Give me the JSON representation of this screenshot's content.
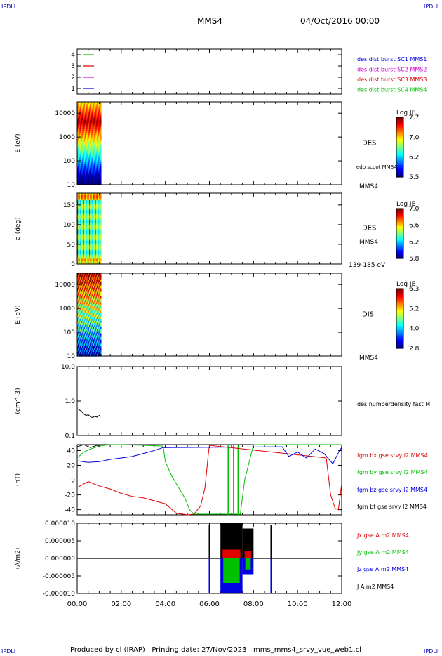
{
  "corner_labels": {
    "top_left": "IPDLI",
    "top_right": "IPDLI",
    "bottom_left": "IPDLI",
    "bottom_right": "IPDLI"
  },
  "header": {
    "spacecraft": "MMS4",
    "date": "04/Oct/2016 00:00"
  },
  "footer": {
    "text": "Produced by cl (IRAP)   Printing date: 27/Nov/2023   mms_mms4_srvy_vue_web1.cl"
  },
  "colors": {
    "black": "#000000",
    "red": "#e00000",
    "green": "#00c000",
    "blue": "#0000e0",
    "magenta": "#d000d0"
  },
  "chart_data": [
    {
      "type": "line",
      "id": "panel1",
      "ylim": [
        0.5,
        4.5
      ],
      "yticks": [
        1,
        2,
        3,
        4
      ],
      "markers": [
        {
          "y": 4,
          "color": "#00c000"
        },
        {
          "y": 3,
          "color": "#e00000"
        },
        {
          "y": 2,
          "color": "#d000d0"
        },
        {
          "y": 1,
          "color": "#0000e0"
        }
      ],
      "legend": [
        {
          "name": "des dist burst SC1 MMS1",
          "color": "#0000e0"
        },
        {
          "name": "des dist burst SC2 MMS2",
          "color": "#d000d0"
        },
        {
          "name": "des dist burst SC3 MMS3",
          "color": "#e00000"
        },
        {
          "name": "des dist burst SC4 MMS4",
          "color": "#00c000"
        }
      ]
    },
    {
      "type": "heatmap",
      "id": "panel2",
      "ylabel": "E (eV)",
      "yscale": "log",
      "ylim": [
        10,
        30000
      ],
      "yticks": [
        "10",
        "100",
        "1000",
        "10000"
      ],
      "data_time_range": [
        "00:00",
        "01:05"
      ],
      "label": "DES",
      "label2": "edp scpot MMS4",
      "label3": "MMS4",
      "colorbar": {
        "title": "Log JE",
        "range": [
          5.5,
          7.7
        ],
        "ticks": [
          "7.7",
          "7.0",
          "6.2",
          "5.5"
        ]
      }
    },
    {
      "type": "heatmap",
      "id": "panel3",
      "ylabel": "a (deg)",
      "ylim": [
        0,
        180
      ],
      "yticks": [
        "0",
        "50",
        "100",
        "150"
      ],
      "data_time_range": [
        "00:00",
        "01:05"
      ],
      "label": "DES",
      "label2": "MMS4",
      "label3": "139-185 eV",
      "colorbar": {
        "title": "Log JE",
        "range": [
          5.8,
          7.0
        ],
        "ticks": [
          "7.0",
          "6.6",
          "6.2",
          "5.8"
        ]
      }
    },
    {
      "type": "heatmap",
      "id": "panel4",
      "ylabel": "E (eV)",
      "yscale": "log",
      "ylim": [
        10,
        30000
      ],
      "yticks": [
        "10",
        "100",
        "1000",
        "10000"
      ],
      "data_time_range": [
        "00:00",
        "01:05"
      ],
      "label": "DIS",
      "label2": "MMS4",
      "colorbar": {
        "title": "Log JE",
        "range": [
          2.8,
          6.3
        ],
        "ticks": [
          "6.3",
          "5.2",
          "4.0",
          "2.8"
        ]
      }
    },
    {
      "type": "line",
      "id": "panel5",
      "ylabel": "(cm^-3)",
      "yscale": "log",
      "ylim": [
        0.1,
        10
      ],
      "yticks": [
        "0.1",
        "1.0",
        "10.0"
      ],
      "series": [
        {
          "name": "des numberdensity fast M",
          "color": "#000000",
          "x": [
            0.0,
            0.1,
            0.2,
            0.3,
            0.4,
            0.5,
            0.6,
            0.7,
            0.8,
            0.9,
            1.0,
            1.05
          ],
          "y": [
            0.6,
            0.55,
            0.5,
            0.42,
            0.38,
            0.4,
            0.35,
            0.33,
            0.36,
            0.34,
            0.38,
            0.35
          ]
        }
      ]
    },
    {
      "type": "line",
      "id": "panel6",
      "ylabel": "(nT)",
      "ylim": [
        -47,
        48
      ],
      "yticks": [
        "-40",
        "-20",
        "0",
        "20",
        "40"
      ],
      "series": [
        {
          "name": "fgm bx gse srvy l2 MMS4",
          "color": "#e00000",
          "x": [
            0,
            0.5,
            1.0,
            1.5,
            2.0,
            2.5,
            3.0,
            3.5,
            4.0,
            4.5,
            4.8,
            5.0,
            5.3,
            5.6,
            5.8,
            5.95,
            6.0,
            11.3,
            11.5,
            11.7,
            11.85,
            12.0
          ],
          "y": [
            -10,
            -2,
            -8,
            -12,
            -18,
            -22,
            -24,
            -28,
            -32,
            -45,
            -46,
            -47,
            -46,
            -35,
            -10,
            35,
            47,
            30,
            -20,
            -38,
            -40,
            -5
          ]
        },
        {
          "name": "fgm by gse srvy l2 MMS4",
          "color": "#00c000",
          "x": [
            0,
            0.3,
            0.6,
            1.0,
            1.5,
            2.0,
            3.0,
            3.9,
            4.0,
            4.3,
            4.6,
            4.9,
            5.1,
            5.3,
            7.4,
            7.6,
            8.0,
            12.0
          ],
          "y": [
            30,
            38,
            42,
            46,
            48,
            48,
            47,
            46,
            25,
            5,
            -10,
            -25,
            -40,
            -46,
            -46,
            0,
            48,
            48
          ]
        },
        {
          "name": "fgm bz gse srvy l2 MMS4",
          "color": "#0000e0",
          "x": [
            0,
            0.5,
            1.0,
            1.5,
            2.0,
            2.5,
            3.0,
            3.5,
            3.9,
            9.3,
            9.6,
            10.0,
            10.4,
            10.8,
            11.2,
            11.6,
            11.9,
            12.0
          ],
          "y": [
            26,
            24,
            25,
            28,
            30,
            32,
            36,
            40,
            44,
            45,
            32,
            38,
            30,
            42,
            36,
            22,
            40,
            44
          ]
        },
        {
          "name": "fgm bt gse srvy l2 MMS4",
          "color": "#000000",
          "x": [
            0,
            0.3,
            0.6,
            0.9,
            1.0
          ],
          "y": [
            45,
            48,
            44,
            47,
            46
          ]
        }
      ],
      "vlines": [
        {
          "x": 6.85,
          "color": "#00c000"
        },
        {
          "x": 7.1,
          "color": "#e00000"
        },
        {
          "x": 7.3,
          "color": "#00c000"
        }
      ],
      "hline_dashed": 0
    },
    {
      "type": "area",
      "id": "panel7",
      "ylabel": "(A/m2)",
      "ylim": [
        -1e-05,
        1e-05
      ],
      "yticks": [
        "-0.000010",
        "-0.000005",
        "0.000000",
        "0.000005",
        "0.000010"
      ],
      "series": [
        {
          "name": "Jx gse A m2 MMS4",
          "color": "#e00000"
        },
        {
          "name": "Jy gse A m2 MMS4",
          "color": "#00c000"
        },
        {
          "name": "Jz gse A m2 MMS4",
          "color": "#0000e0"
        },
        {
          "name": "J A m2 MMS4",
          "color": "#000000"
        }
      ],
      "spikes": [
        {
          "x": 6.0,
          "ymax": 9.5e-06,
          "ymin": -1e-05
        },
        {
          "x": 8.8,
          "ymax": 9.5e-06,
          "ymin": -1e-05
        }
      ],
      "bursts": [
        {
          "x0": 6.5,
          "x1": 7.5,
          "ymax": 1e-05,
          "ymin": -1e-05
        },
        {
          "x0": 7.5,
          "x1": 8.0,
          "ymax": 8.5e-06,
          "ymin": -4.5e-06
        }
      ]
    }
  ],
  "xaxis": {
    "ticks": [
      "00:00",
      "02:00",
      "04:00",
      "06:00",
      "08:00",
      "10:00",
      "12:00"
    ],
    "range_hours": [
      0,
      12
    ]
  }
}
